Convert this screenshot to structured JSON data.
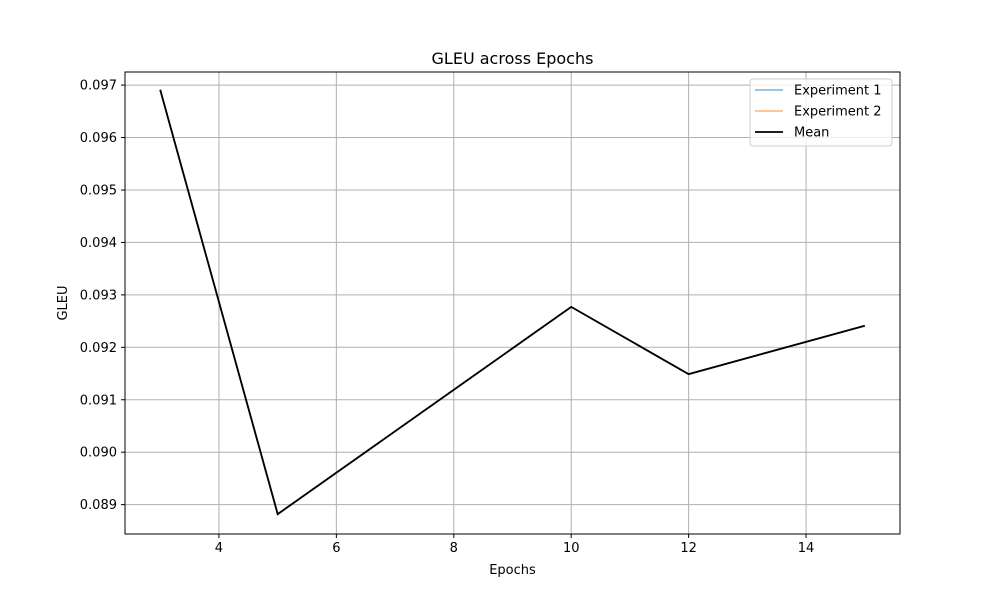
{
  "chart_data": {
    "type": "line",
    "title": "GLEU across Epochs",
    "xlabel": "Epochs",
    "ylabel": "GLEU",
    "xlim": [
      2.4,
      15.6
    ],
    "ylim": [
      0.08844,
      0.09725
    ],
    "x_ticks": [
      4,
      6,
      8,
      10,
      12,
      14
    ],
    "x_tick_labels": [
      "4",
      "6",
      "8",
      "10",
      "12",
      "14"
    ],
    "y_ticks": [
      0.089,
      0.09,
      0.091,
      0.092,
      0.093,
      0.094,
      0.095,
      0.096,
      0.097
    ],
    "y_tick_labels": [
      "0.089",
      "0.090",
      "0.091",
      "0.092",
      "0.093",
      "0.094",
      "0.095",
      "0.096",
      "0.097"
    ],
    "grid": true,
    "legend_position": "top-right",
    "series": [
      {
        "name": "Experiment 1",
        "color": "#1f77b4",
        "opacity": 0.5,
        "x": [
          3,
          5,
          10,
          12,
          15
        ],
        "y": [
          0.09691,
          0.08882,
          0.09277,
          0.09149,
          0.09241
        ]
      },
      {
        "name": "Experiment 2",
        "color": "#ff7f0e",
        "opacity": 0.5,
        "x": [
          3,
          5,
          10,
          12,
          15
        ],
        "y": [
          0.09691,
          0.08882,
          0.09277,
          0.09149,
          0.09241
        ]
      },
      {
        "name": "Mean",
        "color": "#000000",
        "opacity": 1.0,
        "x": [
          3,
          5,
          10,
          12,
          15
        ],
        "y": [
          0.09691,
          0.08882,
          0.09277,
          0.09149,
          0.09241
        ]
      }
    ]
  }
}
